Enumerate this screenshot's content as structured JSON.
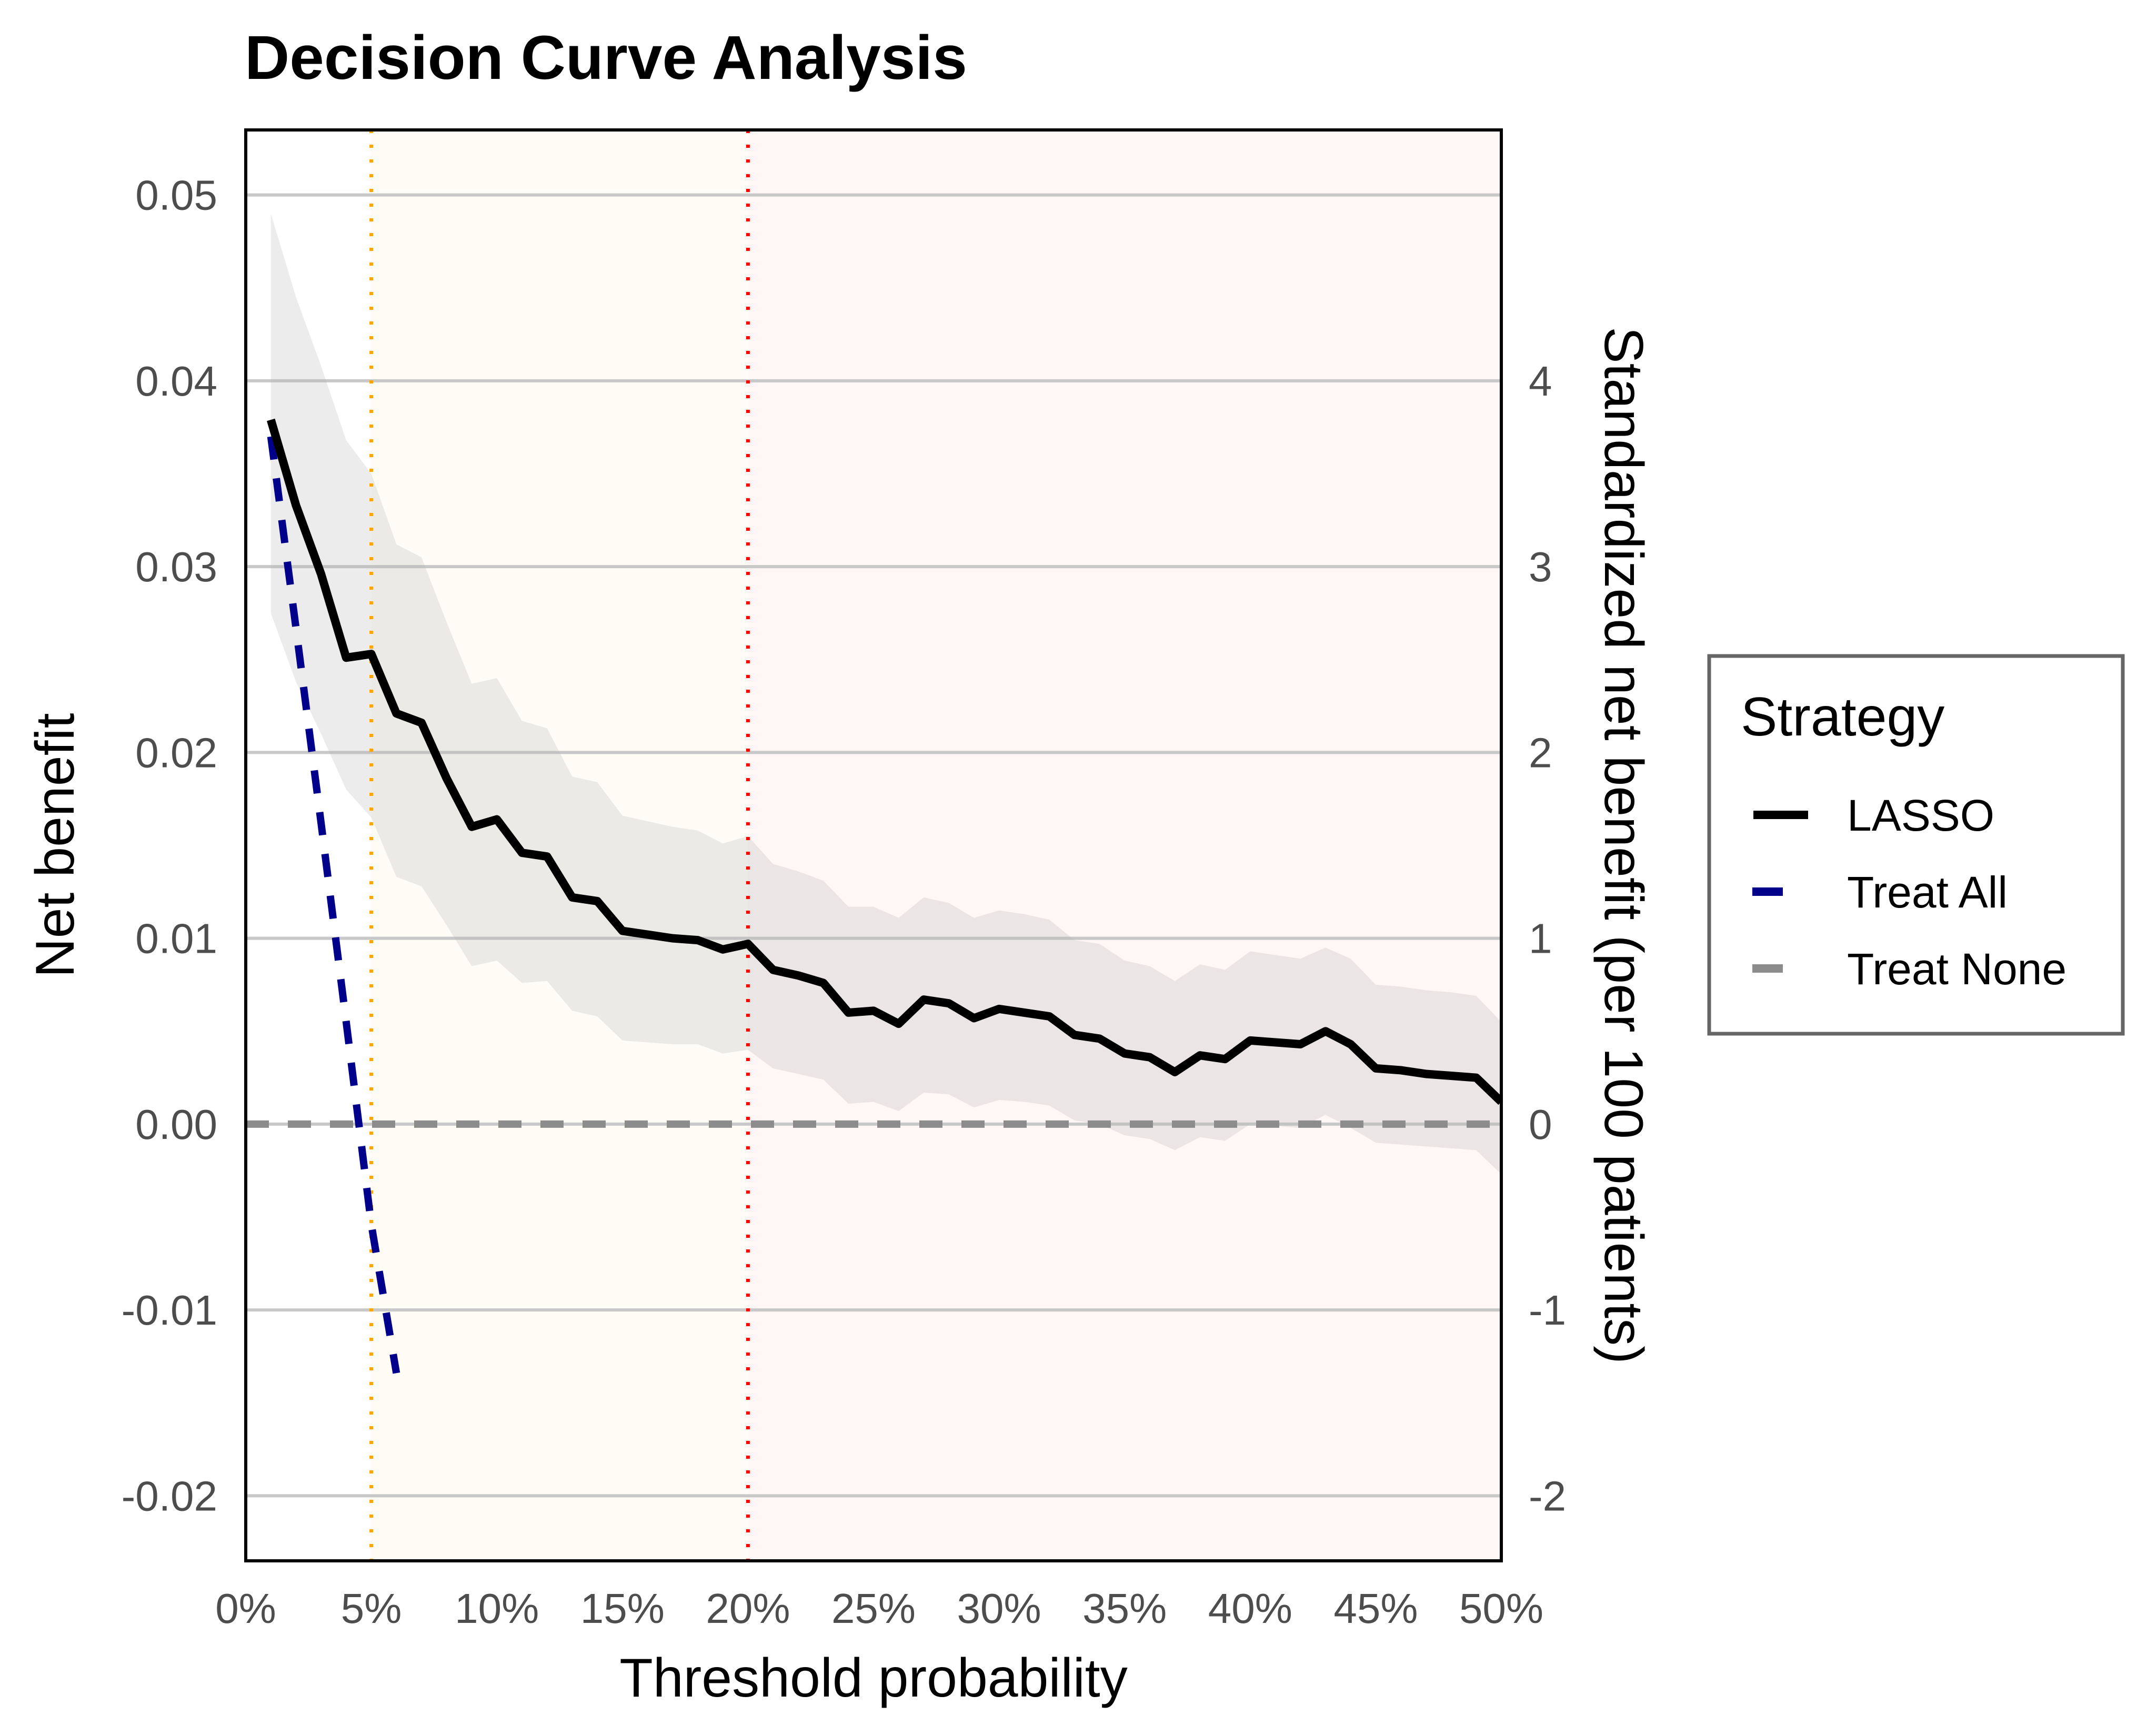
{
  "chart_data": {
    "type": "line",
    "title": "Decision Curve Analysis",
    "xlabel": "Threshold probability",
    "ylabel": "Net benefit",
    "y2label": "Standardized net benefit (per 100 patients)",
    "xlim": [
      0,
      0.5
    ],
    "ylim": [
      -0.0235,
      0.0535
    ],
    "x_ticks": [
      0,
      0.05,
      0.1,
      0.15,
      0.2,
      0.25,
      0.3,
      0.35,
      0.4,
      0.45,
      0.5
    ],
    "x_tick_labels": [
      "0%",
      "5%",
      "10%",
      "15%",
      "20%",
      "25%",
      "30%",
      "35%",
      "40%",
      "45%",
      "50%"
    ],
    "y_ticks": [
      -0.02,
      -0.01,
      0,
      0.01,
      0.02,
      0.03,
      0.04,
      0.05
    ],
    "y_tick_labels": [
      "-0.02",
      "-0.01",
      "0.00",
      "0.01",
      "0.02",
      "0.03",
      "0.04",
      "0.05"
    ],
    "y2_ticks": [
      -2,
      -1,
      0,
      1,
      2,
      3,
      4
    ],
    "y2_tick_labels": [
      "-2",
      "-1",
      "0",
      "1",
      "2",
      "3",
      "4"
    ],
    "y2_scale_factor": 100,
    "grid": "horizontal major",
    "shaded_regions": [
      {
        "x": [
          0.05,
          0.2
        ],
        "color": "#fffcf5"
      },
      {
        "x": [
          0.2,
          0.5
        ],
        "color": "#fff6f6"
      }
    ],
    "reference_lines": [
      {
        "x": 0.05,
        "color": "#ffa500",
        "style": "dotted"
      },
      {
        "x": 0.2,
        "color": "#ff0000",
        "style": "dotted"
      }
    ],
    "legend": {
      "title": "Strategy",
      "position": "right",
      "items": [
        {
          "label": "LASSO",
          "color": "#000000",
          "style": "solid"
        },
        {
          "label": "Treat All",
          "color": "#00008b",
          "style": "dashed"
        },
        {
          "label": "Treat None",
          "color": "#8c8c8c",
          "style": "dashed"
        }
      ]
    },
    "series": [
      {
        "name": "LASSO",
        "color": "#000000",
        "style": "solid",
        "x": [
          0.01,
          0.02,
          0.03,
          0.04,
          0.05,
          0.06,
          0.07,
          0.08,
          0.09,
          0.1,
          0.11,
          0.12,
          0.13,
          0.14,
          0.15,
          0.16,
          0.17,
          0.18,
          0.19,
          0.2,
          0.21,
          0.22,
          0.23,
          0.24,
          0.25,
          0.26,
          0.27,
          0.28,
          0.29,
          0.3,
          0.31,
          0.32,
          0.33,
          0.34,
          0.35,
          0.36,
          0.37,
          0.38,
          0.39,
          0.4,
          0.41,
          0.42,
          0.43,
          0.44,
          0.45,
          0.46,
          0.47,
          0.48,
          0.49,
          0.5
        ],
        "y": [
          0.0379,
          0.0333,
          0.0296,
          0.0251,
          0.0253,
          0.0221,
          0.0216,
          0.0186,
          0.016,
          0.0164,
          0.0146,
          0.0144,
          0.0122,
          0.012,
          0.0104,
          0.0102,
          0.01,
          0.0099,
          0.0094,
          0.0097,
          0.0083,
          0.008,
          0.0076,
          0.006,
          0.0061,
          0.0054,
          0.0067,
          0.0065,
          0.0057,
          0.0062,
          0.006,
          0.0058,
          0.0048,
          0.0046,
          0.0038,
          0.0036,
          0.0028,
          0.0037,
          0.0035,
          0.0045,
          0.0044,
          0.0043,
          0.005,
          0.0043,
          0.003,
          0.0029,
          0.0027,
          0.0026,
          0.0025,
          0.0012
        ],
        "ci_lower": [
          0.0275,
          0.0238,
          0.021,
          0.018,
          0.0165,
          0.0133,
          0.0128,
          0.0107,
          0.0085,
          0.0088,
          0.0076,
          0.0077,
          0.0061,
          0.0058,
          0.0045,
          0.0044,
          0.0043,
          0.0043,
          0.0038,
          0.004,
          0.003,
          0.0027,
          0.0024,
          0.0011,
          0.0012,
          0.0007,
          0.0017,
          0.0016,
          0.0009,
          0.0013,
          0.0012,
          0.001,
          0.0002,
          0.0,
          -0.0006,
          -0.0008,
          -0.0014,
          -0.0007,
          -0.0009,
          0.0,
          -0.0001,
          -0.0002,
          0.0005,
          -0.0002,
          -0.001,
          -0.0011,
          -0.0012,
          -0.0013,
          -0.0014,
          -0.0027
        ],
        "ci_upper": [
          0.049,
          0.0445,
          0.0408,
          0.0368,
          0.035,
          0.0312,
          0.0305,
          0.027,
          0.0237,
          0.024,
          0.0217,
          0.0213,
          0.0187,
          0.0184,
          0.0166,
          0.0163,
          0.016,
          0.0158,
          0.0151,
          0.0155,
          0.014,
          0.0136,
          0.0131,
          0.0117,
          0.0117,
          0.0111,
          0.0122,
          0.0119,
          0.0111,
          0.0115,
          0.0113,
          0.011,
          0.0099,
          0.0097,
          0.0088,
          0.0085,
          0.0077,
          0.0086,
          0.0083,
          0.0093,
          0.0091,
          0.0089,
          0.0095,
          0.0089,
          0.0075,
          0.0074,
          0.0072,
          0.0071,
          0.0069,
          0.0055
        ]
      },
      {
        "name": "Treat All",
        "color": "#00008b",
        "style": "dashed",
        "x": [
          0.01,
          0.02,
          0.03,
          0.04,
          0.05,
          0.06
        ],
        "y": [
          0.037,
          0.0267,
          0.0162,
          0.0055,
          -0.0054,
          -0.0134
        ]
      },
      {
        "name": "Treat None",
        "color": "#8c8c8c",
        "style": "dashed",
        "x": [
          0,
          0.5
        ],
        "y": [
          0,
          0
        ]
      }
    ]
  }
}
